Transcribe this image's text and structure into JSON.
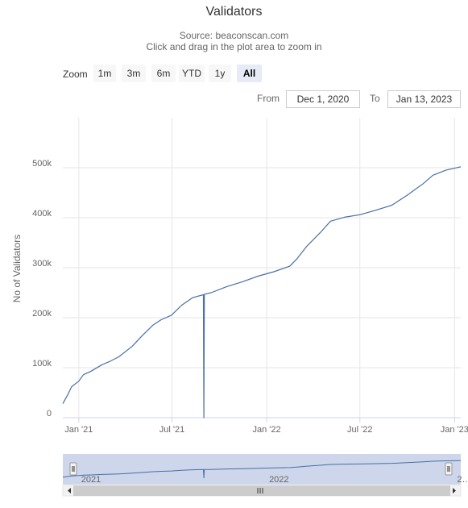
{
  "chart_data": {
    "type": "line",
    "title": "Validators",
    "subtitle_lines": [
      "Source: beaconscan.com",
      "Click and drag in the plot area to zoom in"
    ],
    "ylabel": "No of Validators",
    "xlabel": "",
    "x_ticks": [
      "Jan '21",
      "Jul '21",
      "Jan '22",
      "Jul '22",
      "Jan '23"
    ],
    "y_ticks": [
      0,
      100000,
      200000,
      300000,
      400000,
      500000
    ],
    "y_tick_labels": [
      "0",
      "100k",
      "200k",
      "300k",
      "400k",
      "500k"
    ],
    "ylim": [
      0,
      600000
    ],
    "xlim": [
      "2020-12-01",
      "2023-01-13"
    ],
    "grid": true,
    "legend": "none",
    "series": [
      {
        "color": "#4a6fa5",
        "points": [
          [
            "2020-12-01",
            28000
          ],
          [
            "2020-12-10",
            45000
          ],
          [
            "2020-12-18",
            62000
          ],
          [
            "2021-01-01",
            73000
          ],
          [
            "2021-01-10",
            86000
          ],
          [
            "2021-01-25",
            93000
          ],
          [
            "2021-02-15",
            106000
          ],
          [
            "2021-03-01",
            112000
          ],
          [
            "2021-03-20",
            122000
          ],
          [
            "2021-04-15",
            143000
          ],
          [
            "2021-05-05",
            165000
          ],
          [
            "2021-05-25",
            185000
          ],
          [
            "2021-06-10",
            196000
          ],
          [
            "2021-06-30",
            205000
          ],
          [
            "2021-07-20",
            225000
          ],
          [
            "2021-08-10",
            240000
          ],
          [
            "2021-08-31",
            246000
          ],
          [
            "2021-09-01",
            0
          ],
          [
            "2021-09-02",
            247000
          ],
          [
            "2021-09-15",
            250000
          ],
          [
            "2021-10-15",
            262000
          ],
          [
            "2021-11-15",
            272000
          ],
          [
            "2021-12-15",
            283000
          ],
          [
            "2022-01-15",
            292000
          ],
          [
            "2022-02-15",
            303000
          ],
          [
            "2022-03-01",
            318000
          ],
          [
            "2022-03-20",
            343000
          ],
          [
            "2022-04-15",
            370000
          ],
          [
            "2022-05-05",
            393000
          ],
          [
            "2022-06-01",
            401000
          ],
          [
            "2022-07-01",
            406000
          ],
          [
            "2022-08-01",
            415000
          ],
          [
            "2022-09-01",
            425000
          ],
          [
            "2022-10-01",
            445000
          ],
          [
            "2022-11-01",
            468000
          ],
          [
            "2022-11-20",
            485000
          ],
          [
            "2022-12-15",
            495000
          ],
          [
            "2023-01-13",
            502000
          ]
        ]
      }
    ],
    "navigator": {
      "labels": [
        "2021",
        "2022",
        "2…"
      ],
      "selected_range": [
        "2020-12-01",
        "2023-01-13"
      ]
    }
  },
  "rangeSelector": {
    "zoom_label": "Zoom",
    "buttons": [
      {
        "label": "1m",
        "active": false
      },
      {
        "label": "3m",
        "active": false
      },
      {
        "label": "6m",
        "active": false
      },
      {
        "label": "YTD",
        "active": false
      },
      {
        "label": "1y",
        "active": false
      },
      {
        "label": "All",
        "active": true
      }
    ],
    "from_label": "From",
    "from_value": "Dec 1, 2020",
    "to_label": "To",
    "to_value": "Jan 13, 2023"
  },
  "colors": {
    "line": "#4a6fa5",
    "grid": "#e6e6e6",
    "navigator_mask": "#cdd6ea",
    "navigator_line": "#4a6fa5",
    "scrollbar": "#cccccc"
  }
}
